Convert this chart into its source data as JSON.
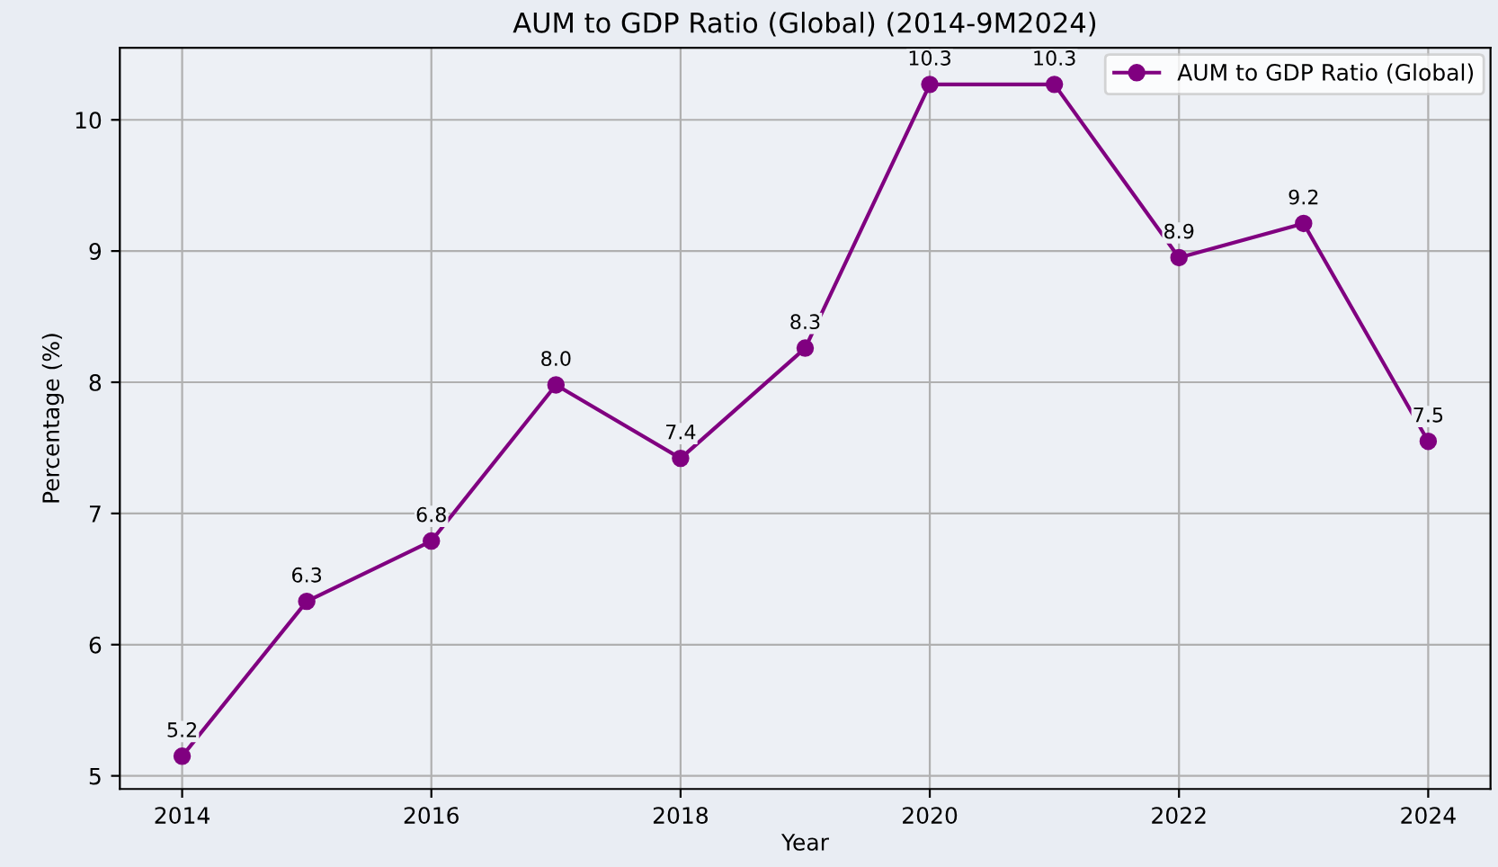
{
  "chart_data": {
    "type": "line",
    "title": "AUM to GDP Ratio (Global) (2014-9M2024)",
    "xlabel": "Year",
    "ylabel": "Percentage (%)",
    "x": [
      2014,
      2015,
      2016,
      2017,
      2018,
      2019,
      2020,
      2021,
      2022,
      2023,
      2024
    ],
    "series": [
      {
        "name": "AUM to GDP Ratio (Global)",
        "color": "#800080",
        "values": [
          5.15,
          6.33,
          6.79,
          7.98,
          7.42,
          8.26,
          10.27,
          10.27,
          8.95,
          9.21,
          7.55
        ],
        "value_labels": [
          "5.2",
          "6.3",
          "6.8",
          "8.0",
          "7.4",
          "8.3",
          "10.3",
          "10.3",
          "8.9",
          "9.2",
          "7.5"
        ]
      }
    ],
    "xlim": [
      2013.5,
      2024.5
    ],
    "xticks": [
      2014,
      2016,
      2018,
      2020,
      2022,
      2024
    ],
    "ylim": [
      4.9,
      10.55
    ],
    "yticks": [
      5,
      6,
      7,
      8,
      9,
      10
    ],
    "grid": true,
    "legend": "top right",
    "marker": "circle",
    "line_style": "solid"
  }
}
